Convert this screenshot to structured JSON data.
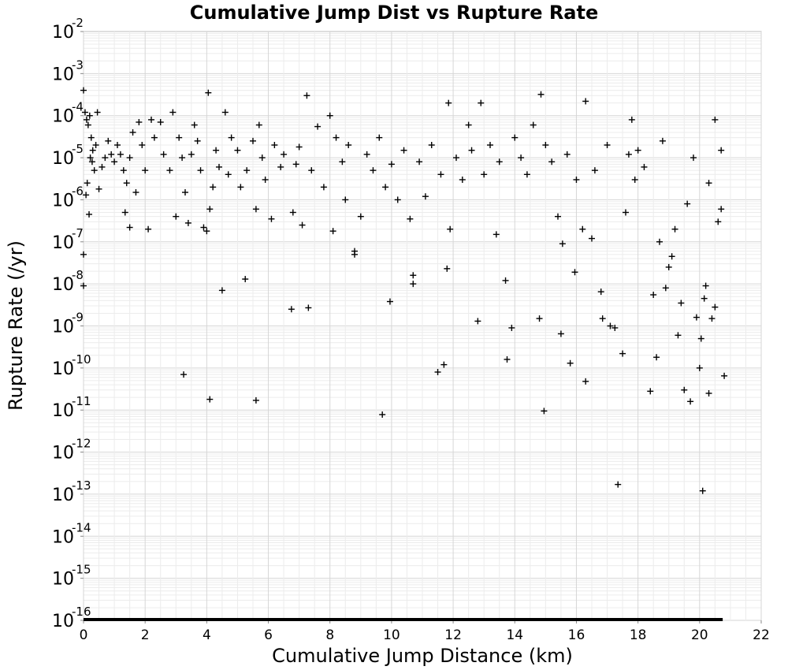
{
  "chart_data": {
    "type": "scatter",
    "title": "Cumulative Jump Dist vs Rupture Rate",
    "xlabel": "Cumulative Jump Distance (km)",
    "ylabel": "Rupture Rate (/yr)",
    "xlim": [
      0,
      22
    ],
    "ylim_exponent": [
      -16,
      -2
    ],
    "y_scale": "log",
    "grid": true,
    "legend": "none",
    "marker": "+",
    "marker_color": "#000000",
    "x_ticks": [
      "0",
      "2",
      "4",
      "6",
      "8",
      "10",
      "12",
      "14",
      "16",
      "18",
      "20",
      "22"
    ],
    "y_ticks": [
      {
        "base": "10",
        "exp": "-16"
      },
      {
        "base": "10",
        "exp": "-15"
      },
      {
        "base": "10",
        "exp": "-14"
      },
      {
        "base": "10",
        "exp": "-13"
      },
      {
        "base": "10",
        "exp": "-12"
      },
      {
        "base": "10",
        "exp": "-11"
      },
      {
        "base": "10",
        "exp": "-10"
      },
      {
        "base": "10",
        "exp": "-9"
      },
      {
        "base": "10",
        "exp": "-8"
      },
      {
        "base": "10",
        "exp": "-7"
      },
      {
        "base": "10",
        "exp": "-6"
      },
      {
        "base": "10",
        "exp": "-5"
      },
      {
        "base": "10",
        "exp": "-4"
      },
      {
        "base": "10",
        "exp": "-3"
      },
      {
        "base": "10",
        "exp": "-2"
      }
    ],
    "points": [
      [
        0.0,
        0.0004
      ],
      [
        0.05,
        0.00012
      ],
      [
        0.1,
        8e-05
      ],
      [
        0.15,
        6e-05
      ],
      [
        0.2,
        0.0001
      ],
      [
        0.25,
        3e-05
      ],
      [
        0.3,
        1.5e-05
      ],
      [
        0.35,
        5e-06
      ],
      [
        0.4,
        2e-05
      ],
      [
        0.45,
        0.00012
      ],
      [
        0.5,
        1.8e-06
      ],
      [
        0.6,
        6e-06
      ],
      [
        0.7,
        1e-05
      ],
      [
        0.8,
        2.5e-05
      ],
      [
        0.9,
        1.2e-05
      ],
      [
        0.08,
        1.3e-06
      ],
      [
        0.12,
        2.5e-06
      ],
      [
        0.18,
        4.5e-07
      ],
      [
        0.22,
        1e-05
      ],
      [
        0.28,
        8e-06
      ],
      [
        0.0,
        5e-08
      ],
      [
        0.0,
        9e-09
      ],
      [
        1.0,
        8e-06
      ],
      [
        1.1,
        2e-05
      ],
      [
        1.2,
        1.2e-05
      ],
      [
        1.3,
        5e-06
      ],
      [
        1.35,
        5e-07
      ],
      [
        1.4,
        2.5e-06
      ],
      [
        1.5,
        1e-05
      ],
      [
        1.5,
        2.2e-07
      ],
      [
        1.6,
        4e-05
      ],
      [
        1.7,
        1.5e-06
      ],
      [
        1.8,
        7e-05
      ],
      [
        1.9,
        2e-05
      ],
      [
        2.0,
        5e-06
      ],
      [
        2.1,
        2e-07
      ],
      [
        2.2,
        8e-05
      ],
      [
        2.3,
        3e-05
      ],
      [
        2.5,
        7e-05
      ],
      [
        2.6,
        1.2e-05
      ],
      [
        2.8,
        5e-06
      ],
      [
        2.9,
        0.00012
      ],
      [
        3.0,
        4e-07
      ],
      [
        3.1,
        3e-05
      ],
      [
        3.2,
        1e-05
      ],
      [
        3.25,
        7e-11
      ],
      [
        3.3,
        1.5e-06
      ],
      [
        3.4,
        2.8e-07
      ],
      [
        3.5,
        1.2e-05
      ],
      [
        3.6,
        6e-05
      ],
      [
        3.7,
        2.5e-05
      ],
      [
        3.8,
        5e-06
      ],
      [
        3.9,
        2.2e-07
      ],
      [
        4.0,
        1.8e-07
      ],
      [
        4.05,
        0.00035
      ],
      [
        4.1,
        6e-07
      ],
      [
        4.1,
        1.8e-11
      ],
      [
        4.2,
        2e-06
      ],
      [
        4.3,
        1.5e-05
      ],
      [
        4.4,
        6e-06
      ],
      [
        4.5,
        7e-09
      ],
      [
        4.6,
        0.00012
      ],
      [
        4.7,
        4e-06
      ],
      [
        4.8,
        3e-05
      ],
      [
        5.0,
        1.5e-05
      ],
      [
        5.1,
        2e-06
      ],
      [
        5.25,
        1.3e-08
      ],
      [
        5.3,
        5e-06
      ],
      [
        5.5,
        2.5e-05
      ],
      [
        5.6,
        6e-07
      ],
      [
        5.6,
        1.7e-11
      ],
      [
        5.7,
        6e-05
      ],
      [
        5.8,
        1e-05
      ],
      [
        5.9,
        3e-06
      ],
      [
        6.1,
        3.5e-07
      ],
      [
        6.2,
        2e-05
      ],
      [
        6.4,
        6e-06
      ],
      [
        6.5,
        1.2e-05
      ],
      [
        6.75,
        2.5e-09
      ],
      [
        6.8,
        5e-07
      ],
      [
        6.9,
        7e-06
      ],
      [
        7.0,
        1.8e-05
      ],
      [
        7.1,
        2.5e-07
      ],
      [
        7.25,
        0.0003
      ],
      [
        7.3,
        2.7e-09
      ],
      [
        7.4,
        5e-06
      ],
      [
        7.6,
        5.5e-05
      ],
      [
        7.8,
        2e-06
      ],
      [
        8.0,
        0.0001
      ],
      [
        8.1,
        1.8e-07
      ],
      [
        8.2,
        3e-05
      ],
      [
        8.4,
        8e-06
      ],
      [
        8.5,
        1e-06
      ],
      [
        8.6,
        2e-05
      ],
      [
        8.8,
        6e-08
      ],
      [
        8.8,
        5e-08
      ],
      [
        9.0,
        4e-07
      ],
      [
        9.2,
        1.2e-05
      ],
      [
        9.4,
        5e-06
      ],
      [
        9.6,
        3e-05
      ],
      [
        9.7,
        7.8e-12
      ],
      [
        9.8,
        2e-06
      ],
      [
        9.95,
        3.8e-09
      ],
      [
        10.0,
        7e-06
      ],
      [
        10.2,
        1e-06
      ],
      [
        10.4,
        1.5e-05
      ],
      [
        10.6,
        3.5e-07
      ],
      [
        10.7,
        1.6e-08
      ],
      [
        10.7,
        1e-08
      ],
      [
        10.9,
        8e-06
      ],
      [
        11.1,
        1.2e-06
      ],
      [
        11.3,
        2e-05
      ],
      [
        11.5,
        8e-11
      ],
      [
        11.6,
        4e-06
      ],
      [
        11.7,
        1.2e-10
      ],
      [
        11.8,
        2.3e-08
      ],
      [
        11.85,
        0.0002
      ],
      [
        11.9,
        2e-07
      ],
      [
        12.1,
        1e-05
      ],
      [
        12.3,
        3e-06
      ],
      [
        12.5,
        6e-05
      ],
      [
        12.6,
        1.5e-05
      ],
      [
        12.8,
        1.3e-09
      ],
      [
        12.9,
        0.0002
      ],
      [
        13.0,
        4e-06
      ],
      [
        13.2,
        2e-05
      ],
      [
        13.4,
        1.5e-07
      ],
      [
        13.5,
        8e-06
      ],
      [
        13.7,
        1.2e-08
      ],
      [
        13.75,
        1.6e-10
      ],
      [
        13.9,
        9e-10
      ],
      [
        14.0,
        3e-05
      ],
      [
        14.2,
        1e-05
      ],
      [
        14.4,
        4e-06
      ],
      [
        14.6,
        6e-05
      ],
      [
        14.8,
        1.5e-09
      ],
      [
        14.85,
        0.00032
      ],
      [
        14.95,
        9.5e-12
      ],
      [
        15.0,
        2e-05
      ],
      [
        15.2,
        8e-06
      ],
      [
        15.4,
        4e-07
      ],
      [
        15.5,
        6.5e-10
      ],
      [
        15.55,
        9e-08
      ],
      [
        15.7,
        1.2e-05
      ],
      [
        15.8,
        1.3e-10
      ],
      [
        15.95,
        1.9e-08
      ],
      [
        16.0,
        3e-06
      ],
      [
        16.2,
        2e-07
      ],
      [
        16.3,
        4.8e-11
      ],
      [
        16.3,
        0.00022
      ],
      [
        16.5,
        1.2e-07
      ],
      [
        16.6,
        5e-06
      ],
      [
        16.8,
        6.5e-09
      ],
      [
        16.85,
        1.5e-09
      ],
      [
        17.0,
        2e-05
      ],
      [
        17.1,
        1e-09
      ],
      [
        17.25,
        9e-10
      ],
      [
        17.35,
        1.7e-13
      ],
      [
        17.5,
        2.2e-10
      ],
      [
        17.6,
        5e-07
      ],
      [
        17.7,
        1.2e-05
      ],
      [
        17.8,
        8e-05
      ],
      [
        17.9,
        3e-06
      ],
      [
        18.0,
        1.5e-05
      ],
      [
        18.2,
        6e-06
      ],
      [
        18.4,
        2.8e-11
      ],
      [
        18.5,
        5.5e-09
      ],
      [
        18.6,
        1.8e-10
      ],
      [
        18.7,
        1e-07
      ],
      [
        18.8,
        2.5e-05
      ],
      [
        18.9,
        8e-09
      ],
      [
        19.0,
        2.5e-08
      ],
      [
        19.1,
        4.5e-08
      ],
      [
        19.2,
        2e-07
      ],
      [
        19.3,
        6e-10
      ],
      [
        19.4,
        3.5e-09
      ],
      [
        19.5,
        3e-11
      ],
      [
        19.6,
        8e-07
      ],
      [
        19.7,
        1.6e-11
      ],
      [
        19.8,
        1e-05
      ],
      [
        19.9,
        1.6e-09
      ],
      [
        20.0,
        1e-10
      ],
      [
        20.05,
        5e-10
      ],
      [
        20.1,
        1.2e-13
      ],
      [
        20.15,
        4.5e-09
      ],
      [
        20.2,
        9e-09
      ],
      [
        20.3,
        2.5e-11
      ],
      [
        20.4,
        1.5e-09
      ],
      [
        20.5,
        2.8e-09
      ],
      [
        20.6,
        3e-07
      ],
      [
        20.7,
        6e-07
      ],
      [
        20.8,
        6.5e-11
      ],
      [
        20.7,
        1.5e-05
      ],
      [
        20.5,
        8e-05
      ],
      [
        20.3,
        2.5e-06
      ]
    ],
    "zero_floor": {
      "x_start": 0,
      "x_end": 20.75,
      "y_exponent": -16
    }
  }
}
